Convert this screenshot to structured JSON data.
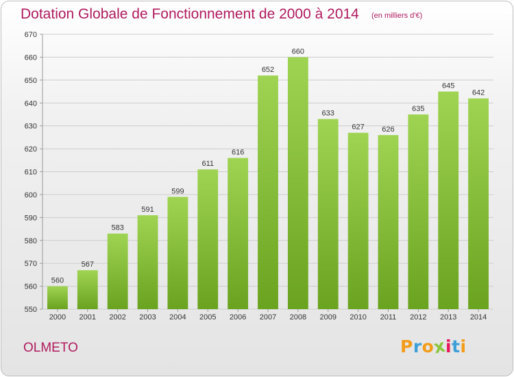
{
  "title": "Dotation Globale de Fonctionnement de 2000 à 2014",
  "unit_note": "(en milliers d'€)",
  "commune": "OLMETO",
  "logo": {
    "text": "Proxiti",
    "letters": [
      {
        "ch": "P",
        "color": "#f39c19"
      },
      {
        "ch": "r",
        "color": "#3e9fd8"
      },
      {
        "ch": "o",
        "color": "#f39c19"
      },
      {
        "ch": "x",
        "color": "#8cc63e"
      },
      {
        "ch": "i",
        "color": "#e8175d"
      },
      {
        "ch": "t",
        "color": "#3e9fd8"
      },
      {
        "ch": "i",
        "color": "#f39c19"
      }
    ]
  },
  "colors": {
    "title": "#b01a5e",
    "bar_top": "#9fd453",
    "bar_bottom": "#6aa31f",
    "grid": "#cccccc"
  },
  "chart_data": {
    "type": "bar",
    "title": "Dotation Globale de Fonctionnement de 2000 à 2014",
    "xlabel": "",
    "ylabel": "",
    "categories": [
      "2000",
      "2001",
      "2002",
      "2003",
      "2004",
      "2005",
      "2006",
      "2007",
      "2008",
      "2009",
      "2010",
      "2011",
      "2012",
      "2013",
      "2014"
    ],
    "values": [
      560,
      567,
      583,
      591,
      599,
      611,
      616,
      652,
      660,
      633,
      627,
      626,
      635,
      645,
      642
    ],
    "ylim": [
      550,
      670
    ],
    "yticks": [
      550,
      560,
      570,
      580,
      590,
      600,
      610,
      620,
      630,
      640,
      650,
      660,
      670
    ],
    "grid": true,
    "legend": "none"
  }
}
